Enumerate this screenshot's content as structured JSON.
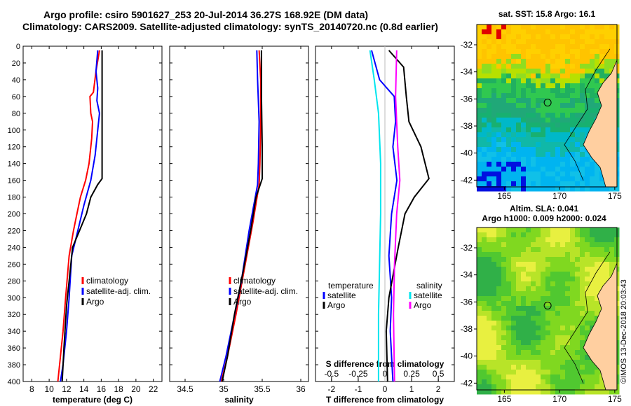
{
  "header": {
    "line1": "Argo profile: csiro 5901627_253 20-Jul-2014 36.27S 168.92E (DM data)",
    "line2": "Climatology: CARS2009. Satellite-adjusted climatology: synTS_20140720.nc (0.8d earlier)"
  },
  "watermark": "©IMOS 13-Dec-2018 20:03:43",
  "colors": {
    "climatology": "#ff0000",
    "satellite": "#0000ff",
    "argo": "#000000",
    "cyan": "#00e5ee",
    "magenta": "#ff00ff"
  },
  "chart_data": [
    {
      "type": "line",
      "name": "temperature",
      "xlabel": "temperature (deg C)",
      "xlim": [
        7,
        23
      ],
      "ylim": [
        0,
        400
      ],
      "xticks": [
        "8",
        "10",
        "12",
        "14",
        "16",
        "18",
        "20",
        "22"
      ],
      "yticks": [
        "0",
        "20",
        "40",
        "60",
        "80",
        "100",
        "120",
        "140",
        "160",
        "180",
        "200",
        "220",
        "240",
        "260",
        "280",
        "300",
        "320",
        "340",
        "360",
        "380",
        "400"
      ],
      "legend": [
        "climatology",
        "satellite-adj. clim.",
        "Argo"
      ],
      "series": [
        {
          "name": "climatology",
          "color": "#ff0000",
          "points": [
            [
              15.8,
              5
            ],
            [
              15.4,
              30
            ],
            [
              15.1,
              55
            ],
            [
              14.7,
              60
            ],
            [
              14.8,
              80
            ],
            [
              15.0,
              90
            ],
            [
              14.9,
              110
            ],
            [
              14.6,
              140
            ],
            [
              14.2,
              160
            ],
            [
              13.6,
              180
            ],
            [
              13.2,
              200
            ],
            [
              12.8,
              220
            ],
            [
              12.3,
              250
            ],
            [
              11.9,
              300
            ],
            [
              11.6,
              340
            ],
            [
              11.2,
              380
            ],
            [
              11.0,
              400
            ]
          ]
        },
        {
          "name": "satellite-adj. clim.",
          "color": "#0000ff",
          "points": [
            [
              15.6,
              5
            ],
            [
              15.4,
              30
            ],
            [
              15.6,
              50
            ],
            [
              15.5,
              65
            ],
            [
              15.8,
              80
            ],
            [
              15.6,
              100
            ],
            [
              15.3,
              130
            ],
            [
              14.8,
              160
            ],
            [
              14.0,
              190
            ],
            [
              13.3,
              220
            ],
            [
              12.6,
              250
            ],
            [
              12.3,
              300
            ],
            [
              12.0,
              340
            ],
            [
              11.6,
              380
            ],
            [
              11.3,
              400
            ]
          ]
        },
        {
          "name": "Argo",
          "color": "#000000",
          "points": [
            [
              16.1,
              5
            ],
            [
              16.1,
              100
            ],
            [
              16.1,
              158
            ],
            [
              15.6,
              165
            ],
            [
              14.8,
              180
            ],
            [
              14.3,
              200
            ],
            [
              13.5,
              220
            ],
            [
              12.7,
              240
            ],
            [
              12.4,
              270
            ],
            [
              12.0,
              310
            ],
            [
              11.7,
              360
            ],
            [
              11.5,
              400
            ]
          ]
        }
      ]
    },
    {
      "type": "line",
      "name": "salinity",
      "xlabel": "salinity",
      "xlim": [
        34.3,
        36.1
      ],
      "ylim": [
        0,
        400
      ],
      "xticks": [
        "34.5",
        "35",
        "35.5",
        "36"
      ],
      "legend": [
        "climatology",
        "satellite-adj. clim.",
        "Argo"
      ],
      "series": [
        {
          "name": "climatology",
          "color": "#ff0000",
          "points": [
            [
              35.46,
              5
            ],
            [
              35.48,
              40
            ],
            [
              35.48,
              100
            ],
            [
              35.47,
              140
            ],
            [
              35.46,
              165
            ],
            [
              35.38,
              210
            ],
            [
              35.28,
              260
            ],
            [
              35.16,
              320
            ],
            [
              35.05,
              370
            ],
            [
              34.97,
              400
            ]
          ]
        },
        {
          "name": "satellite-adj. clim.",
          "color": "#0000ff",
          "points": [
            [
              35.43,
              5
            ],
            [
              35.44,
              40
            ],
            [
              35.46,
              90
            ],
            [
              35.45,
              140
            ],
            [
              35.44,
              165
            ],
            [
              35.33,
              220
            ],
            [
              35.23,
              280
            ],
            [
              35.12,
              330
            ],
            [
              35.03,
              370
            ],
            [
              34.95,
              400
            ]
          ]
        },
        {
          "name": "Argo",
          "color": "#000000",
          "points": [
            [
              35.49,
              5
            ],
            [
              35.49,
              60
            ],
            [
              35.5,
              120
            ],
            [
              35.5,
              158
            ],
            [
              35.42,
              180
            ],
            [
              35.35,
              220
            ],
            [
              35.25,
              270
            ],
            [
              35.14,
              320
            ],
            [
              35.05,
              370
            ],
            [
              34.98,
              400
            ]
          ]
        }
      ]
    },
    {
      "type": "line",
      "name": "difference",
      "xlabel": "T difference from climatology",
      "xlabel2": "S difference from climatology",
      "xlim": [
        -2.6,
        2.6
      ],
      "ylim": [
        0,
        400
      ],
      "xticks": [
        "-2",
        "-1",
        "0",
        "1",
        "2"
      ],
      "xticks2": [
        "-0.5",
        "-0.25",
        "0",
        "0.25",
        "0.5"
      ],
      "legend_left_title": "temperature",
      "legend_right_title": "salinity",
      "legend": [
        "satellite",
        "Argo",
        "satellite",
        "Argo"
      ],
      "series": [
        {
          "name": "T satellite",
          "color": "#0000ff",
          "points": [
            [
              -0.5,
              5
            ],
            [
              -0.2,
              40
            ],
            [
              0.35,
              60
            ],
            [
              0.4,
              90
            ],
            [
              0.3,
              120
            ],
            [
              0.45,
              160
            ],
            [
              0.25,
              200
            ],
            [
              0.15,
              250
            ],
            [
              0.25,
              300
            ],
            [
              0.2,
              340
            ],
            [
              0.3,
              400
            ]
          ]
        },
        {
          "name": "T Argo",
          "color": "#000000",
          "points": [
            [
              0.15,
              5
            ],
            [
              0.7,
              25
            ],
            [
              0.8,
              60
            ],
            [
              0.9,
              90
            ],
            [
              1.35,
              120
            ],
            [
              1.65,
              158
            ],
            [
              1.1,
              180
            ],
            [
              0.75,
              200
            ],
            [
              0.5,
              240
            ],
            [
              0.15,
              300
            ],
            [
              0.05,
              340
            ],
            [
              0.1,
              400
            ]
          ]
        },
        {
          "name": "S satellite",
          "color": "#00e5ee",
          "points": [
            [
              -0.14,
              5
            ],
            [
              -0.1,
              40
            ],
            [
              -0.06,
              80
            ],
            [
              -0.04,
              140
            ],
            [
              -0.04,
              200
            ],
            [
              -0.05,
              260
            ],
            [
              -0.06,
              320
            ],
            [
              -0.06,
              400
            ]
          ]
        },
        {
          "name": "S Argo",
          "color": "#ff00ff",
          "points": [
            [
              0.11,
              5
            ],
            [
              0.1,
              60
            ],
            [
              0.12,
              120
            ],
            [
              0.14,
              160
            ],
            [
              0.11,
              200
            ],
            [
              0.09,
              260
            ],
            [
              0.08,
              320
            ],
            [
              0.09,
              400
            ]
          ]
        }
      ]
    },
    {
      "type": "heatmap",
      "name": "sst-map",
      "title": "sat. SST: 15.8  Argo: 16.1",
      "xticks": [
        "165",
        "170",
        "175"
      ],
      "yticks": [
        "-32",
        "-34",
        "-36",
        "-38",
        "-40",
        "-42"
      ],
      "xlim": [
        162.5,
        175.2
      ],
      "ylim": [
        -42.5,
        -30.5
      ],
      "float_position": [
        168.92,
        -36.27
      ]
    },
    {
      "type": "heatmap",
      "name": "sla-map",
      "title": "Altim. SLA: 0.041",
      "subtitle": "Argo h1000: 0.009 h2000: 0.024",
      "xticks": [
        "165",
        "170",
        "175"
      ],
      "yticks": [
        "-32",
        "-34",
        "-36",
        "-38",
        "-40",
        "-42"
      ],
      "xlim": [
        162.5,
        175.2
      ],
      "ylim": [
        -42.5,
        -30.5
      ],
      "float_position": [
        168.92,
        -36.27
      ]
    }
  ]
}
